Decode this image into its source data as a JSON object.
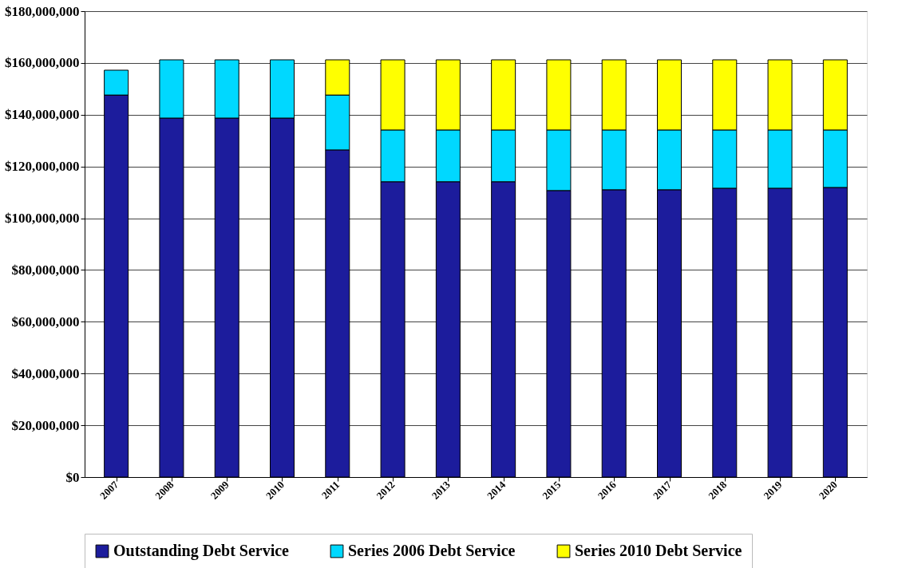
{
  "chart_data": {
    "type": "bar",
    "stacked": true,
    "categories": [
      "2007",
      "2008",
      "2009",
      "2010",
      "2011",
      "2012",
      "2013",
      "2014",
      "2015",
      "2016",
      "2017",
      "2018",
      "2019",
      "2020"
    ],
    "series": [
      {
        "name": "Outstanding Debt Service",
        "color": "#1c1c9c",
        "values": [
          147600000,
          138700000,
          138700000,
          138700000,
          126400000,
          114100000,
          114100000,
          114100000,
          110700000,
          111000000,
          111000000,
          111600000,
          111600000,
          111900000
        ]
      },
      {
        "name": "Series 2006 Debt Service",
        "color": "#00d8ff",
        "values": [
          9600000,
          22500000,
          22500000,
          22500000,
          21200000,
          20000000,
          20000000,
          20000000,
          23400000,
          23100000,
          23100000,
          22500000,
          22500000,
          22200000
        ]
      },
      {
        "name": "Series 2010 Debt Service",
        "color": "#ffff00",
        "values": [
          null,
          null,
          null,
          null,
          13600000,
          27100000,
          27100000,
          27100000,
          27100000,
          27100000,
          27100000,
          27100000,
          27100000,
          27100000
        ]
      }
    ],
    "ylim": [
      0,
      180000000
    ],
    "yticks": [
      {
        "value": 0,
        "label": "$0"
      },
      {
        "value": 20000000,
        "label": "$20,000,000"
      },
      {
        "value": 40000000,
        "label": "$40,000,000"
      },
      {
        "value": 60000000,
        "label": "$60,000,000"
      },
      {
        "value": 80000000,
        "label": "$80,000,000"
      },
      {
        "value": 100000000,
        "label": "$100,000,000"
      },
      {
        "value": 120000000,
        "label": "$120,000,000"
      },
      {
        "value": 140000000,
        "label": "$140,000,000"
      },
      {
        "value": 160000000,
        "label": "$160,000,000"
      },
      {
        "value": 180000000,
        "label": "$180,000,000"
      }
    ],
    "grid": "y",
    "legend": "bottom"
  }
}
